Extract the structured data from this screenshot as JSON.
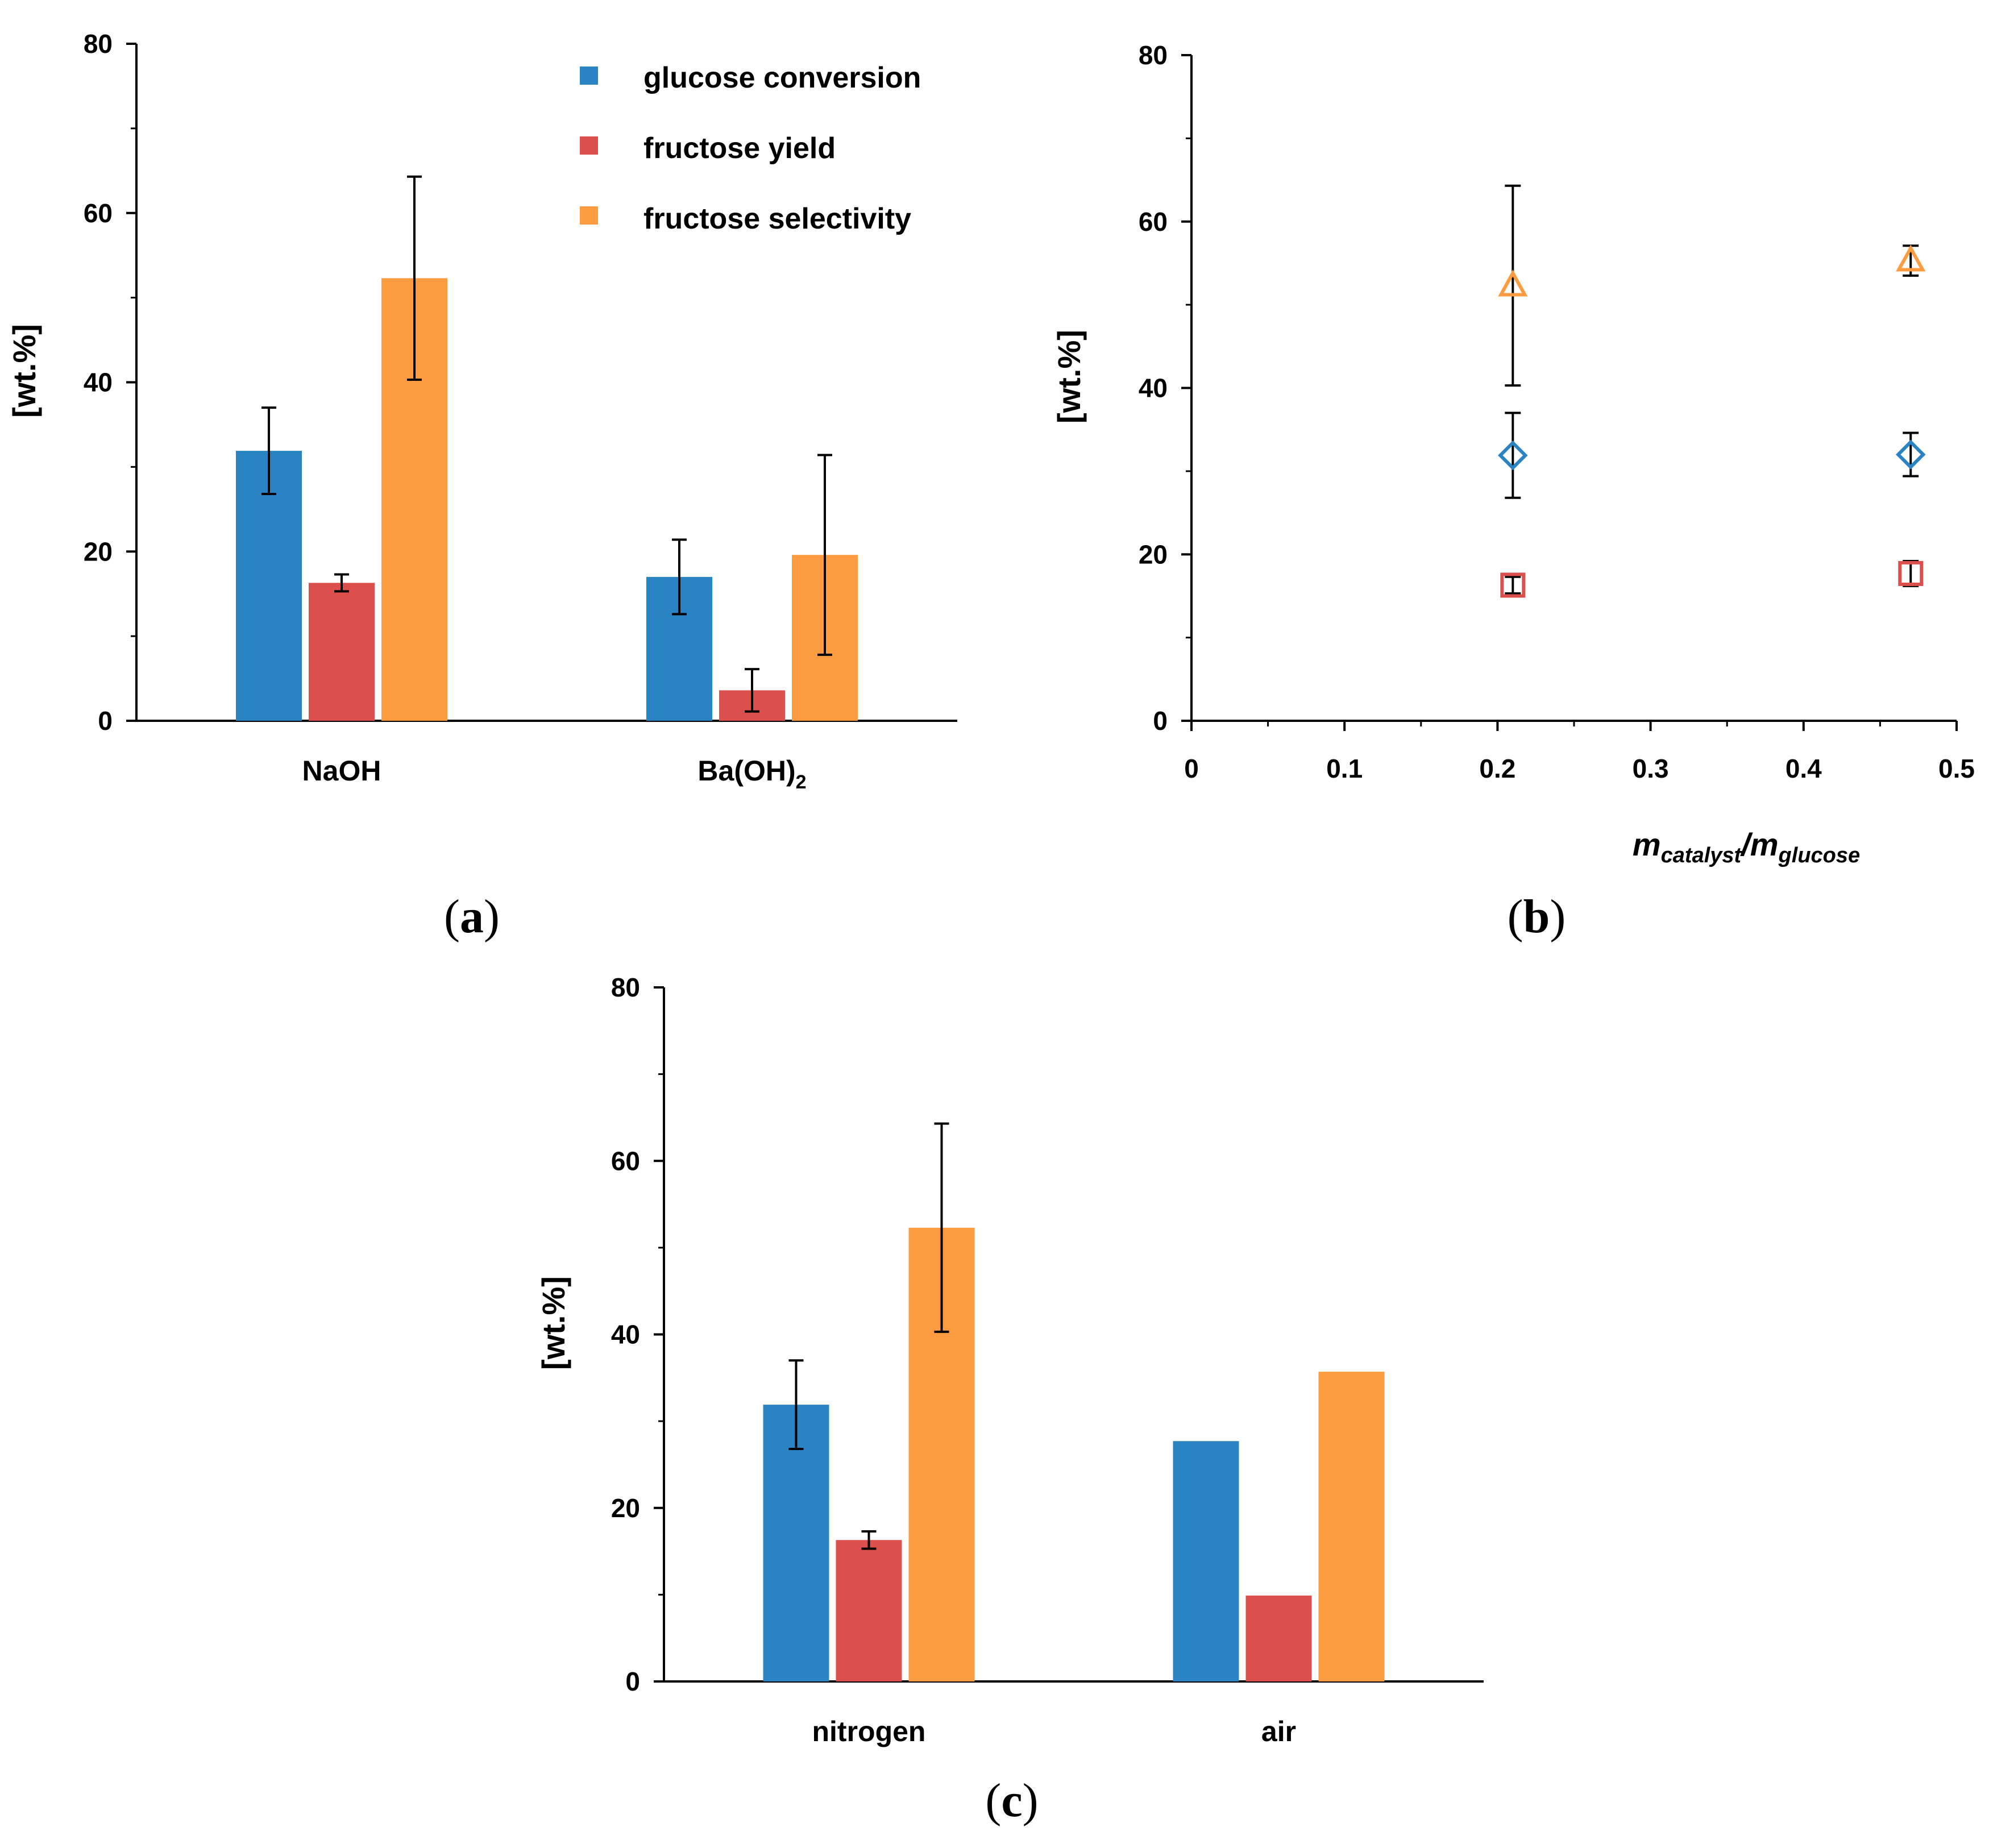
{
  "colors": {
    "glucose": "#2a83c3",
    "fructose_yield": "#db4f4c",
    "fructose_selectivity": "#fd9b41",
    "axis": "#000000"
  },
  "legend": {
    "items": [
      {
        "key": "glucose",
        "label": "glucose conversion"
      },
      {
        "key": "fructose_yield",
        "label": "fructose yield"
      },
      {
        "key": "fructose_selectivity",
        "label": "fructose selectivity"
      }
    ]
  },
  "panels": {
    "a": {
      "tag": "a"
    },
    "b": {
      "tag": "b"
    },
    "c": {
      "tag": "c"
    }
  },
  "chart_data": [
    {
      "id": "a",
      "type": "bar",
      "ylabel": "[wt.%]",
      "ylim": [
        0,
        80
      ],
      "yticks": [
        0,
        20,
        40,
        60,
        80
      ],
      "categories": [
        "NaOH",
        "Ba(OH)2"
      ],
      "category_display": [
        {
          "main": "NaOH",
          "sub": ""
        },
        {
          "main": "Ba(OH)",
          "sub": "2"
        }
      ],
      "series": [
        {
          "name": "glucose conversion",
          "key": "glucose",
          "values": [
            31.9,
            17.0
          ],
          "errors": [
            5.1,
            4.4
          ]
        },
        {
          "name": "fructose yield",
          "key": "fructose_yield",
          "values": [
            16.3,
            3.6
          ],
          "errors": [
            1.0,
            2.5
          ]
        },
        {
          "name": "fructose selectivity",
          "key": "fructose_selectivity",
          "values": [
            52.3,
            19.6
          ],
          "errors": [
            12.0,
            11.8
          ]
        }
      ]
    },
    {
      "id": "b",
      "type": "scatter",
      "ylabel": "[wt.%]",
      "xlabel": {
        "m1": "m",
        "s1": "catalyst",
        "slash": "/",
        "m2": "m",
        "s2": "glucose"
      },
      "xlim": [
        0,
        0.5
      ],
      "ylim": [
        0,
        80
      ],
      "xticks": [
        0,
        0.1,
        0.2,
        0.3,
        0.4,
        0.5
      ],
      "xtick_labels": [
        "0",
        "0.1",
        "0.2",
        "0.3",
        "0.4",
        "0.5"
      ],
      "yticks": [
        0,
        20,
        40,
        60,
        80
      ],
      "series": [
        {
          "name": "glucose conversion",
          "key": "glucose",
          "marker": "diamond",
          "x": [
            0.21,
            0.47
          ],
          "y": [
            31.9,
            32.0
          ],
          "errors": [
            5.1,
            2.6
          ]
        },
        {
          "name": "fructose yield",
          "key": "fructose_yield",
          "marker": "square",
          "x": [
            0.21,
            0.47
          ],
          "y": [
            16.3,
            17.7
          ],
          "errors": [
            1.0,
            1.5
          ]
        },
        {
          "name": "fructose selectivity",
          "key": "fructose_selectivity",
          "marker": "triangle",
          "x": [
            0.21,
            0.47
          ],
          "y": [
            52.3,
            55.3
          ],
          "errors": [
            12.0,
            1.8
          ]
        }
      ]
    },
    {
      "id": "c",
      "type": "bar",
      "ylabel": "[wt.%]",
      "ylim": [
        0,
        80
      ],
      "yticks": [
        0,
        20,
        40,
        60,
        80
      ],
      "categories": [
        "nitrogen",
        "air"
      ],
      "category_display": [
        {
          "main": "nitrogen",
          "sub": ""
        },
        {
          "main": "air",
          "sub": ""
        }
      ],
      "series": [
        {
          "name": "glucose conversion",
          "key": "glucose",
          "values": [
            31.9,
            27.7
          ],
          "errors": [
            5.1,
            null
          ]
        },
        {
          "name": "fructose yield",
          "key": "fructose_yield",
          "values": [
            16.3,
            9.9
          ],
          "errors": [
            1.0,
            null
          ]
        },
        {
          "name": "fructose selectivity",
          "key": "fructose_selectivity",
          "values": [
            52.3,
            35.7
          ],
          "errors": [
            12.0,
            null
          ]
        }
      ]
    }
  ]
}
